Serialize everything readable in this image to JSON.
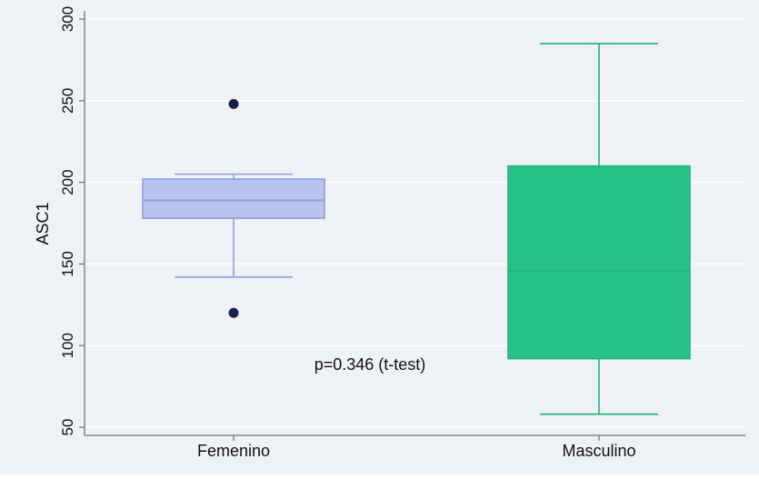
{
  "chart_data": {
    "type": "box",
    "title": "",
    "xlabel": "",
    "ylabel": "ASC1",
    "ylim": [
      45,
      305
    ],
    "yticks": [
      50,
      100,
      150,
      200,
      250,
      300
    ],
    "grid": true,
    "annotation": "p=0.346 (t-test)",
    "categories": [
      "Femenino",
      "Masculino"
    ],
    "boxes": [
      {
        "category": "Femenino",
        "whisker_low": 142,
        "q1": 178,
        "median": 189,
        "q3": 202,
        "whisker_high": 205,
        "outliers": [
          248,
          120
        ],
        "fill": "#b7c2ee",
        "stroke": "#8f9fe0"
      },
      {
        "category": "Masculino",
        "whisker_low": 58,
        "q1": 92,
        "median": 146,
        "q3": 210,
        "whisker_high": 285,
        "outliers": [],
        "fill": "#27c28a",
        "stroke": "#22b47b"
      }
    ],
    "outlier_color": "#16204a",
    "background_color": "#eef1f5",
    "grid_color": "#ffffff"
  }
}
